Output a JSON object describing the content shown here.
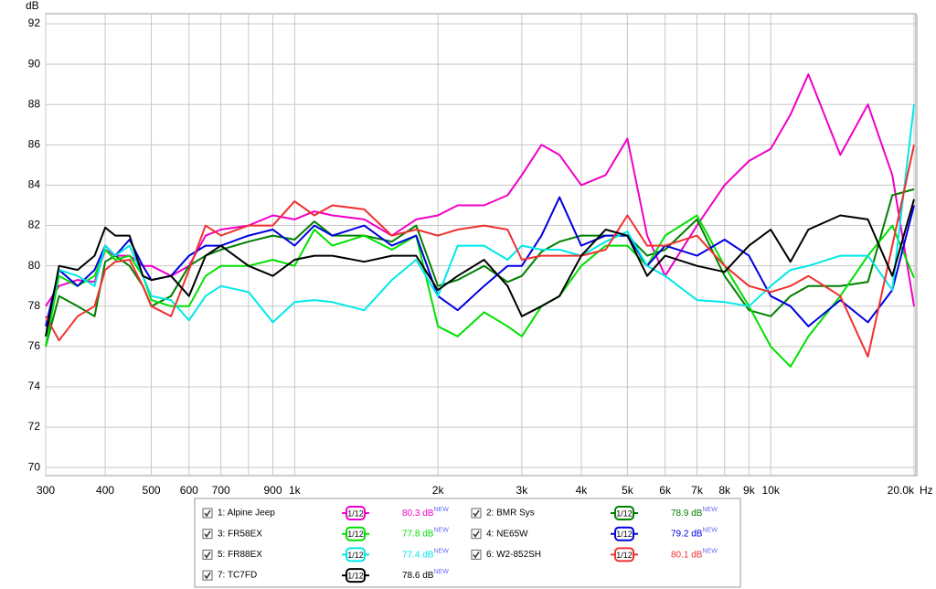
{
  "chart_data": {
    "type": "line",
    "y_label": "dB",
    "x_unit": "Hz",
    "x_log": true,
    "grid": true,
    "xlim": [
      300,
      20000
    ],
    "ylim": [
      69.6,
      92.5
    ],
    "yticks": [
      70,
      72,
      74,
      76,
      78,
      80,
      82,
      84,
      86,
      88,
      90,
      92
    ],
    "xticks": [
      300,
      400,
      500,
      600,
      700,
      900,
      {
        "value": 1000,
        "label": "1k"
      },
      {
        "value": 2000,
        "label": "2k"
      },
      {
        "value": 3000,
        "label": "3k"
      },
      {
        "value": 4000,
        "label": "4k"
      },
      {
        "value": 5000,
        "label": "5k"
      },
      {
        "value": 6000,
        "label": "6k"
      },
      {
        "value": 7000,
        "label": "7k"
      },
      {
        "value": 8000,
        "label": "8k"
      },
      {
        "value": 9000,
        "label": "9k"
      },
      {
        "value": 10000,
        "label": "10k"
      },
      {
        "value": 20000,
        "label": "20.0k"
      }
    ],
    "x_minor_ticks": [
      800
    ],
    "x": [
      300,
      320,
      350,
      380,
      400,
      420,
      450,
      480,
      500,
      550,
      600,
      650,
      700,
      800,
      900,
      1000,
      1100,
      1200,
      1400,
      1600,
      1800,
      2000,
      2200,
      2500,
      2800,
      3000,
      3300,
      3600,
      4000,
      4500,
      5000,
      5500,
      6000,
      7000,
      8000,
      9000,
      10000,
      11000,
      12000,
      14000,
      16000,
      18000,
      20000
    ],
    "series": [
      {
        "name": "1: Alpine Jeep",
        "color": "#f000c8",
        "smoothing": "1/12",
        "level": "80.3 dB",
        "level_note": "NEW",
        "values": [
          78,
          79,
          79.3,
          79.2,
          80.8,
          80.5,
          80.5,
          80,
          80,
          79.5,
          80,
          81.5,
          81.8,
          82,
          82.5,
          82.3,
          82.7,
          82.5,
          82.3,
          81.5,
          82.3,
          82.5,
          83,
          83,
          83.5,
          84.5,
          86,
          85.5,
          84,
          84.5,
          86.3,
          81.5,
          79.5,
          82,
          84,
          85.2,
          85.8,
          87.5,
          89.5,
          85.5,
          88,
          84.5,
          78
        ]
      },
      {
        "name": "2: BMR Sys",
        "color": "#007f00",
        "smoothing": "1/12",
        "level": "78.9 dB",
        "level_note": "NEW",
        "values": [
          76,
          78.5,
          78,
          77.5,
          80.2,
          80.5,
          80,
          79,
          78,
          78.5,
          80,
          80.5,
          80.8,
          81.2,
          81.5,
          81.3,
          82.2,
          81.5,
          81.5,
          81.2,
          82,
          79,
          79.3,
          80,
          79.2,
          79.5,
          80.7,
          81.2,
          81.5,
          81.5,
          81.5,
          80.5,
          80.8,
          82.3,
          79.5,
          77.8,
          77.5,
          78.5,
          79,
          79,
          79.2,
          83.5,
          83.8
        ]
      },
      {
        "name": "3: FR58EX",
        "color": "#00e000",
        "smoothing": "1/12",
        "level": "77.8 dB",
        "level_note": "NEW",
        "values": [
          76,
          79.5,
          79,
          79.5,
          80.8,
          80.3,
          80.5,
          79.5,
          78.3,
          78,
          78,
          79.5,
          80,
          80,
          80.3,
          80,
          81.8,
          81,
          81.5,
          80.8,
          81.5,
          77,
          76.5,
          77.7,
          77,
          76.5,
          78,
          78.5,
          80,
          81,
          81,
          80,
          81.5,
          82.5,
          80,
          78,
          76,
          75,
          76.5,
          78.5,
          80.5,
          82,
          79.4
        ]
      },
      {
        "name": "4: NE65W",
        "color": "#0000e0",
        "smoothing": "1/12",
        "level": "79.2 dB",
        "level_note": "NEW",
        "values": [
          77,
          79.8,
          79,
          79.8,
          81,
          80.5,
          81.3,
          80,
          79.3,
          79.5,
          80.5,
          81,
          81,
          81.5,
          81.8,
          81,
          82,
          81.5,
          82,
          81,
          81.5,
          78.5,
          77.8,
          79,
          80,
          80,
          81.5,
          83.4,
          81,
          81.5,
          81.5,
          80,
          81,
          80.5,
          81.3,
          80.5,
          78.5,
          78,
          77,
          78.3,
          77.2,
          78.8,
          83
        ]
      },
      {
        "name": "5: FR88EX",
        "color": "#00e8e8",
        "smoothing": "1/12",
        "level": "77.4 dB",
        "level_note": "NEW",
        "values": [
          76.5,
          79.8,
          79.5,
          79,
          81,
          80.5,
          81,
          79.5,
          78.5,
          78.3,
          77.3,
          78.5,
          79,
          78.7,
          77.2,
          78.2,
          78.3,
          78.2,
          77.8,
          79.3,
          80.3,
          78.5,
          81,
          81,
          80.3,
          81,
          80.8,
          80.8,
          80.5,
          81.2,
          81.7,
          80,
          79.5,
          78.3,
          78.2,
          78,
          79,
          79.8,
          80,
          80.5,
          80.5,
          78.8,
          88
        ]
      },
      {
        "name": "6: W2-852SH",
        "color": "#f03030",
        "smoothing": "1/12",
        "level": "80.1 dB",
        "level_note": "NEW",
        "values": [
          77.5,
          76.3,
          77.5,
          78,
          79.8,
          80.2,
          80.3,
          79,
          78,
          77.5,
          79.8,
          82,
          81.5,
          82,
          82,
          83.2,
          82.5,
          83,
          82.8,
          81.5,
          81.8,
          81.5,
          81.8,
          82,
          81.8,
          80.3,
          80.5,
          80.5,
          80.5,
          80.8,
          82.5,
          81,
          81,
          81.5,
          80,
          79,
          78.7,
          79,
          79.5,
          78.5,
          75.5,
          81,
          86
        ]
      },
      {
        "name": "7: TC7FD",
        "color": "#000000",
        "smoothing": "1/12",
        "level": "78.6 dB",
        "level_note": "NEW",
        "values": [
          76.5,
          80,
          79.8,
          80.5,
          81.9,
          81.5,
          81.5,
          79.5,
          79.3,
          79.5,
          78.5,
          80.5,
          81,
          80,
          79.5,
          80.3,
          80.5,
          80.5,
          80.2,
          80.5,
          80.5,
          78.8,
          79.5,
          80.3,
          79,
          77.5,
          78,
          78.5,
          80.5,
          81.8,
          81.5,
          79.5,
          80.5,
          80,
          79.7,
          81,
          81.8,
          80.2,
          81.8,
          82.5,
          82.3,
          79.5,
          83.3
        ]
      }
    ]
  }
}
